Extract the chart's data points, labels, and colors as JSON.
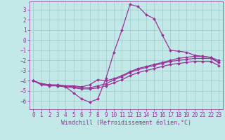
{
  "xlabel": "Windchill (Refroidissement éolien,°C)",
  "xlim": [
    -0.5,
    23.5
  ],
  "ylim": [
    -6.8,
    3.8
  ],
  "yticks": [
    3,
    2,
    1,
    0,
    -1,
    -2,
    -3,
    -4,
    -5,
    -6
  ],
  "xticks": [
    0,
    1,
    2,
    3,
    4,
    5,
    6,
    7,
    8,
    9,
    10,
    11,
    12,
    13,
    14,
    15,
    16,
    17,
    18,
    19,
    20,
    21,
    22,
    23
  ],
  "background_color": "#c2e8e8",
  "grid_color": "#a0cccc",
  "line_color": "#993399",
  "line1": [
    -4.0,
    -4.4,
    -4.5,
    -4.5,
    -4.6,
    -5.2,
    -5.8,
    -6.1,
    -5.8,
    -3.8,
    -1.2,
    1.0,
    3.5,
    3.3,
    2.5,
    2.1,
    0.5,
    -1.0,
    -1.1,
    -1.2,
    -1.5,
    -1.6,
    -1.7,
    -2.2
  ],
  "line2": [
    -4.0,
    -4.3,
    -4.4,
    -4.4,
    -4.5,
    -4.5,
    -4.6,
    -4.4,
    -3.9,
    -4.0,
    -3.8,
    -3.5,
    -3.1,
    -2.8,
    -2.6,
    -2.4,
    -2.2,
    -2.0,
    -1.8,
    -1.7,
    -1.6,
    -1.6,
    -1.7,
    -2.0
  ],
  "line3": [
    -4.0,
    -4.3,
    -4.4,
    -4.5,
    -4.5,
    -4.6,
    -4.7,
    -4.7,
    -4.5,
    -4.3,
    -3.9,
    -3.6,
    -3.2,
    -2.9,
    -2.7,
    -2.5,
    -2.3,
    -2.1,
    -2.0,
    -1.9,
    -1.8,
    -1.8,
    -1.8,
    -2.2
  ],
  "line4": [
    -4.0,
    -4.3,
    -4.4,
    -4.5,
    -4.6,
    -4.7,
    -4.8,
    -4.8,
    -4.7,
    -4.5,
    -4.2,
    -3.9,
    -3.5,
    -3.2,
    -3.0,
    -2.8,
    -2.6,
    -2.4,
    -2.3,
    -2.2,
    -2.1,
    -2.1,
    -2.1,
    -2.5
  ],
  "markersize": 2.0,
  "linewidth": 0.9,
  "tick_fontsize": 5.5,
  "label_fontsize": 6.0
}
